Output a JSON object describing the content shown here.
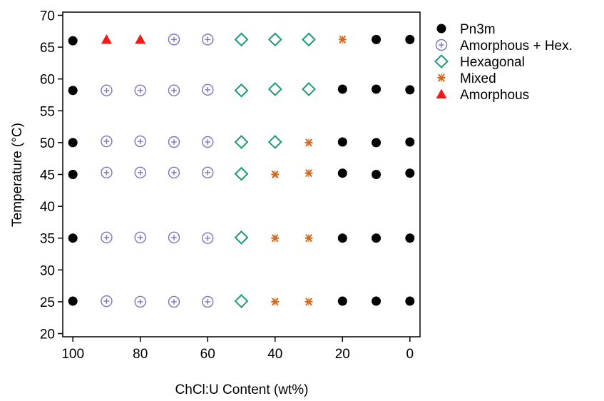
{
  "chart_data": {
    "type": "scatter",
    "title": "",
    "xlabel": "ChCl:U Content (wt%)",
    "ylabel": "Temperature (°C)",
    "xlim": [
      103,
      -3
    ],
    "ylim": [
      19.5,
      70.5
    ],
    "x_reversed": true,
    "xticks": [
      "100",
      "80",
      "60",
      "40",
      "20",
      "0"
    ],
    "yticks": [
      "20",
      "25",
      "30",
      "35",
      "40",
      "45",
      "50",
      "55",
      "60",
      "65",
      "70"
    ],
    "grid": false,
    "legend_position": "top-right outside",
    "series": [
      {
        "name": "Pn3m",
        "marker": "filled-circle",
        "color": "#000000",
        "points": [
          [
            100,
            66
          ],
          [
            0,
            66.2
          ],
          [
            10,
            66.2
          ],
          [
            100,
            58.2
          ],
          [
            20,
            58.4
          ],
          [
            10,
            58.4
          ],
          [
            0,
            58.3
          ],
          [
            100,
            50
          ],
          [
            20,
            50.1
          ],
          [
            10,
            50
          ],
          [
            0,
            50.1
          ],
          [
            100,
            45
          ],
          [
            20,
            45.2
          ],
          [
            10,
            45
          ],
          [
            0,
            45.2
          ],
          [
            100,
            35
          ],
          [
            20,
            35
          ],
          [
            10,
            35
          ],
          [
            0,
            35
          ],
          [
            100,
            25.1
          ],
          [
            20,
            25.1
          ],
          [
            10,
            25.1
          ],
          [
            0,
            25.1
          ]
        ]
      },
      {
        "name": "Amorphous + Hex.",
        "marker": "circle-plus",
        "color": "#7b73c0",
        "points": [
          [
            70,
            66.2
          ],
          [
            60,
            66.2
          ],
          [
            90,
            58.2
          ],
          [
            80,
            58.2
          ],
          [
            70,
            58.2
          ],
          [
            60,
            58.3
          ],
          [
            90,
            50.2
          ],
          [
            80,
            50.2
          ],
          [
            70,
            50.1
          ],
          [
            60,
            50.1
          ],
          [
            90,
            45.3
          ],
          [
            80,
            45.3
          ],
          [
            70,
            45.3
          ],
          [
            60,
            45.3
          ],
          [
            90,
            35.1
          ],
          [
            80,
            35.1
          ],
          [
            70,
            35.1
          ],
          [
            60,
            35
          ],
          [
            90,
            25.1
          ],
          [
            80,
            25
          ],
          [
            70,
            25
          ],
          [
            60,
            25
          ]
        ]
      },
      {
        "name": "Hexagonal",
        "marker": "open-diamond",
        "color": "#1e9a78",
        "points": [
          [
            50,
            66.2
          ],
          [
            40,
            66.2
          ],
          [
            30,
            66.2
          ],
          [
            50,
            58.2
          ],
          [
            40,
            58.4
          ],
          [
            30,
            58.4
          ],
          [
            50,
            50.1
          ],
          [
            40,
            50.1
          ],
          [
            50,
            45.1
          ],
          [
            50,
            35.1
          ],
          [
            50,
            25.1
          ]
        ]
      },
      {
        "name": "Mixed",
        "marker": "asterisk",
        "color": "#d4691c",
        "points": [
          [
            20,
            66.2
          ],
          [
            30,
            50
          ],
          [
            40,
            45
          ],
          [
            30,
            45.2
          ],
          [
            40,
            35
          ],
          [
            30,
            35
          ],
          [
            40,
            25
          ],
          [
            30,
            25
          ]
        ]
      },
      {
        "name": "Amorphous",
        "marker": "filled-triangle",
        "color": "#ef1a1a",
        "points": [
          [
            90,
            66.2
          ],
          [
            80,
            66.2
          ]
        ]
      }
    ]
  }
}
